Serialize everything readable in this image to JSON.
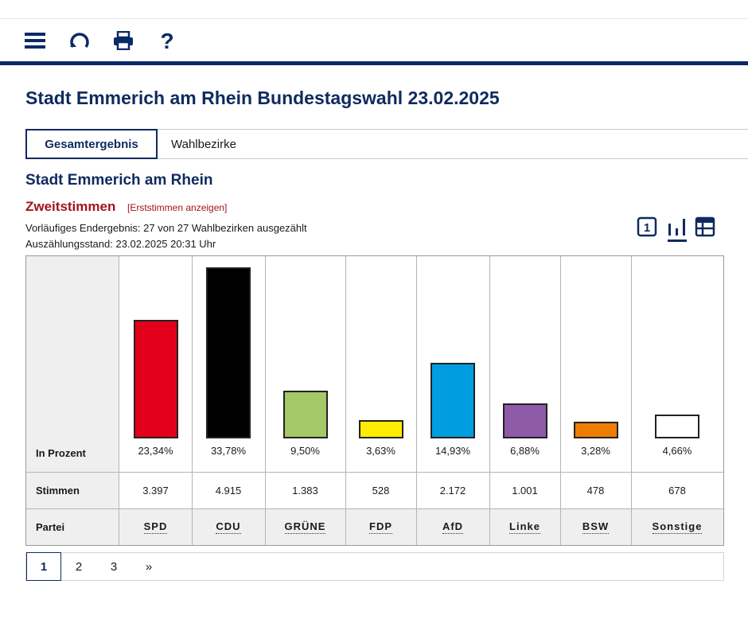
{
  "toolbar": {
    "icons": [
      "menu-icon",
      "refresh-icon",
      "print-icon",
      "help-icon"
    ]
  },
  "page": {
    "title": "Stadt Emmerich am Rhein Bundestagswahl 23.02.2025"
  },
  "tabs": [
    {
      "label": "Gesamtergebnis",
      "active": true
    },
    {
      "label": "Wahlbezirke",
      "active": false
    }
  ],
  "section": {
    "title": "Stadt Emmerich am Rhein",
    "vote_type": "Zweitstimmen",
    "vote_toggle": "[Erststimmen anzeigen]",
    "status": "Vorläufiges Endergebnis: 27 von 27 Wahlbezirken ausgezählt",
    "count_time": "Auszählungsstand: 23.02.2025 20:31 Uhr"
  },
  "views": [
    "single-result-icon",
    "bar-chart-icon",
    "table-icon"
  ],
  "table": {
    "row_labels": {
      "percent": "In Prozent",
      "votes": "Stimmen",
      "party": "Partei"
    }
  },
  "chart_data": {
    "type": "bar",
    "categories": [
      "SPD",
      "CDU",
      "GRÜNE",
      "FDP",
      "AfD",
      "Linke",
      "BSW",
      "Sonstige"
    ],
    "values": [
      23.34,
      33.78,
      9.5,
      3.63,
      14.93,
      6.88,
      3.28,
      4.66
    ],
    "labels": [
      "23,34%",
      "33,78%",
      "9,50%",
      "3,63%",
      "14,93%",
      "6,88%",
      "3,28%",
      "4,66%"
    ],
    "votes": [
      "3.397",
      "4.915",
      "1.383",
      "528",
      "2.172",
      "1.001",
      "478",
      "678"
    ],
    "colors": [
      "#e3001b",
      "#000000",
      "#a5c966",
      "#ffed00",
      "#009ee0",
      "#8e5ba8",
      "#ef7d00",
      "#ffffff"
    ],
    "ylim": [
      0,
      33.78
    ]
  },
  "pager": {
    "pages": [
      "1",
      "2",
      "3"
    ],
    "next": "»",
    "active_page": "1"
  }
}
